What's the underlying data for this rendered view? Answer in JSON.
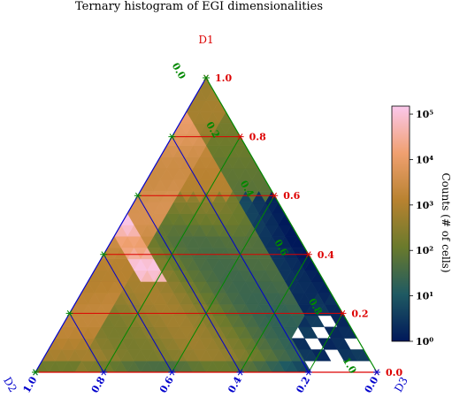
{
  "chart_data": {
    "type": "heatmap",
    "subtype": "ternary-histogram",
    "title": "Ternary histogram of EGI dimensionalities",
    "axes": {
      "top": {
        "label": "D1",
        "color": "#dd0000",
        "ticks": [
          "1.0",
          "0.8",
          "0.6",
          "0.4",
          "0.2",
          "0.0"
        ],
        "gridlines": [
          0.2,
          0.4,
          0.6,
          0.8
        ]
      },
      "left": {
        "label": "D2",
        "color": "#0000cc",
        "ticks": [
          "0.0",
          "0.2",
          "0.4",
          "0.6",
          "0.8",
          "1.0"
        ],
        "gridlines": [
          0.2,
          0.4,
          0.6,
          0.8
        ]
      },
      "right": {
        "label": "D3",
        "color": "#008800",
        "ticks": [
          "0.0",
          "0.2",
          "0.4",
          "0.6",
          "0.8",
          "1.0"
        ],
        "gridlines": [
          0.2,
          0.4,
          0.6,
          0.8
        ]
      }
    },
    "colorbar": {
      "label": "Counts (# of cells)",
      "scale": "log",
      "tick_labels": [
        "10^0",
        "10^1",
        "10^2",
        "10^3",
        "10^4",
        "10^5"
      ],
      "range": [
        1,
        150000
      ],
      "colors": [
        "#00185a",
        "#1f5a62",
        "#6a7a2c",
        "#b88230",
        "#f0a070",
        "#fbc8ec"
      ]
    },
    "bins": 26,
    "ridge": {
      "d1_start": 0.32,
      "d1_end": 0.55,
      "note": "high-count band near D2 = 0.5"
    },
    "grid": true
  }
}
